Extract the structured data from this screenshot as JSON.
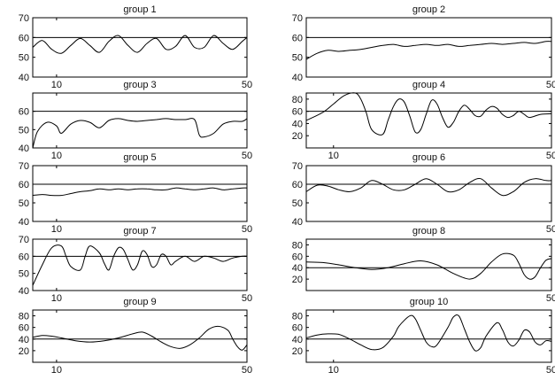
{
  "chart_data": [
    {
      "type": "line",
      "title": "group 1",
      "ylim": [
        40,
        70
      ],
      "yticks": [
        40,
        50,
        60,
        70
      ],
      "xlim": [
        5,
        50
      ],
      "xticks": [
        10,
        50
      ],
      "reference_line": 60,
      "x": [
        5,
        7,
        9,
        11,
        13,
        15,
        17,
        19,
        21,
        23,
        25,
        27,
        29,
        31,
        33,
        35,
        37,
        39,
        41,
        43,
        45,
        47,
        49,
        50
      ],
      "series": [
        {
          "values": [
            55,
            58.5,
            54,
            52,
            56,
            59.5,
            56,
            52.5,
            58,
            61,
            56,
            52.5,
            57,
            59.5,
            54,
            55.5,
            61,
            55,
            55,
            61,
            57,
            54,
            58,
            60
          ]
        }
      ]
    },
    {
      "type": "line",
      "title": "group 2",
      "ylim": [
        40,
        70
      ],
      "yticks": [
        40,
        50,
        60,
        70
      ],
      "xlim": [
        5,
        50
      ],
      "xticks": [
        50
      ],
      "reference_line": 60,
      "x": [
        5,
        7,
        9,
        11,
        13,
        15,
        17,
        19,
        21,
        23,
        25,
        27,
        29,
        31,
        33,
        35,
        37,
        39,
        41,
        43,
        45,
        47,
        49,
        50
      ],
      "series": [
        {
          "values": [
            49,
            52,
            53.5,
            53,
            53.5,
            54,
            55,
            56,
            56.5,
            55.5,
            56,
            56.5,
            56,
            56.5,
            55.5,
            56,
            56.5,
            57,
            56.5,
            57,
            57.5,
            57,
            58,
            58
          ]
        }
      ]
    },
    {
      "type": "line",
      "title": "group 3",
      "ylim": [
        40,
        70
      ],
      "yticks": [
        40,
        50,
        60
      ],
      "xlim": [
        5,
        50
      ],
      "xticks": [
        10,
        50
      ],
      "reference_line": 60,
      "x": [
        5,
        6,
        8,
        10,
        11,
        13,
        15,
        17,
        19,
        21,
        23,
        25,
        27,
        29,
        31,
        33,
        35,
        37,
        39,
        40,
        41,
        43,
        45,
        47,
        49,
        50
      ],
      "series": [
        {
          "values": [
            40,
            49,
            54,
            52,
            48,
            53,
            55,
            54,
            51,
            55,
            56,
            55,
            54.5,
            55,
            55.5,
            56,
            55.5,
            55.5,
            55.5,
            47,
            46,
            48,
            53,
            54.5,
            54.5,
            56
          ]
        }
      ]
    },
    {
      "type": "line",
      "title": "group 4",
      "ylim": [
        0,
        90
      ],
      "yticks": [
        20,
        40,
        60,
        80
      ],
      "xlim": [
        5,
        50
      ],
      "xticks": [
        10,
        50
      ],
      "reference_line": 60,
      "x": [
        5,
        8,
        10,
        12,
        14,
        15,
        16,
        17,
        19,
        20,
        21,
        22,
        23,
        24,
        25,
        26,
        27,
        28,
        29,
        30,
        31,
        32,
        33,
        34,
        35,
        36,
        37,
        38,
        39,
        40,
        41,
        42,
        43,
        44,
        45,
        46,
        48,
        50
      ],
      "series": [
        {
          "values": [
            45,
            58,
            72,
            86,
            90,
            80,
            58,
            30,
            22,
            45,
            68,
            80,
            75,
            52,
            26,
            30,
            55,
            78,
            72,
            50,
            34,
            42,
            60,
            70,
            63,
            53,
            52,
            62,
            68,
            65,
            55,
            50,
            53,
            60,
            55,
            50,
            55,
            56
          ]
        }
      ]
    },
    {
      "type": "line",
      "title": "group 5",
      "ylim": [
        40,
        70
      ],
      "yticks": [
        40,
        50,
        60,
        70
      ],
      "xlim": [
        5,
        50
      ],
      "xticks": [
        10,
        50
      ],
      "reference_line": 60,
      "x": [
        5,
        7,
        9,
        11,
        13,
        15,
        17,
        19,
        21,
        23,
        25,
        27,
        29,
        31,
        33,
        35,
        37,
        39,
        41,
        43,
        45,
        47,
        49,
        50
      ],
      "series": [
        {
          "values": [
            54,
            54.5,
            54,
            54,
            55,
            56,
            56.5,
            57.5,
            57,
            57.5,
            57,
            57.5,
            57.5,
            57,
            57,
            58,
            57.5,
            57,
            57.5,
            58,
            57,
            57.5,
            58,
            58
          ]
        }
      ]
    },
    {
      "type": "line",
      "title": "group 6",
      "ylim": [
        40,
        70
      ],
      "yticks": [
        40,
        50,
        60,
        70
      ],
      "xlim": [
        5,
        50
      ],
      "xticks": [
        50
      ],
      "reference_line": 60,
      "x": [
        5,
        7,
        9,
        11,
        13,
        15,
        17,
        19,
        21,
        23,
        25,
        27,
        29,
        31,
        33,
        35,
        37,
        39,
        41,
        43,
        45,
        47,
        49,
        50
      ],
      "series": [
        {
          "values": [
            56,
            59.5,
            59,
            57,
            56,
            58,
            62,
            60,
            57,
            57,
            60,
            63,
            60,
            56,
            57,
            61,
            63,
            58,
            54,
            56,
            61,
            63,
            62,
            62
          ]
        }
      ]
    },
    {
      "type": "line",
      "title": "group 7",
      "ylim": [
        40,
        70
      ],
      "yticks": [
        40,
        50,
        60,
        70
      ],
      "xlim": [
        5,
        50
      ],
      "xticks": [
        10,
        50
      ],
      "reference_line": 60,
      "x": [
        5,
        7,
        9,
        11,
        12,
        13,
        15,
        16,
        17,
        19,
        20,
        21,
        22,
        23,
        24,
        25,
        26,
        27,
        28,
        29,
        30,
        31,
        32,
        33,
        34,
        35,
        37,
        39,
        41,
        43,
        45,
        47,
        49,
        50
      ],
      "series": [
        {
          "values": [
            43,
            55,
            65,
            66,
            60,
            54,
            52,
            60,
            66,
            62,
            56,
            52,
            60,
            65,
            64,
            58,
            52,
            55,
            63,
            61,
            54,
            55,
            61,
            60,
            55,
            57,
            60,
            57,
            60,
            59,
            57,
            59,
            60,
            60
          ]
        }
      ]
    },
    {
      "type": "line",
      "title": "group 8",
      "ylim": [
        0,
        90
      ],
      "yticks": [
        20,
        40,
        60,
        80
      ],
      "xlim": [
        5,
        50
      ],
      "xticks": [
        50
      ],
      "reference_line": 40,
      "x": [
        5,
        8,
        11,
        14,
        17,
        20,
        23,
        26,
        29,
        32,
        35,
        37,
        39,
        41,
        43,
        44,
        45,
        46,
        47,
        48,
        49,
        50
      ],
      "series": [
        {
          "values": [
            50,
            49,
            45,
            40,
            37,
            40,
            47,
            52,
            45,
            30,
            20,
            30,
            50,
            64,
            62,
            48,
            28,
            20,
            24,
            40,
            53,
            56
          ]
        }
      ]
    },
    {
      "type": "line",
      "title": "group 9",
      "ylim": [
        0,
        90
      ],
      "yticks": [
        20,
        40,
        60,
        80
      ],
      "xlim": [
        5,
        50
      ],
      "xticks": [
        10,
        50
      ],
      "reference_line": 40,
      "x": [
        5,
        7,
        9,
        11,
        14,
        17,
        20,
        23,
        26,
        28,
        30,
        32,
        34,
        36,
        38,
        40,
        42,
        44,
        46,
        47,
        48,
        49,
        50
      ],
      "series": [
        {
          "values": [
            43,
            46,
            45,
            42,
            37,
            35,
            37,
            42,
            49,
            52,
            45,
            35,
            27,
            24,
            30,
            42,
            57,
            62,
            55,
            40,
            27,
            21,
            30
          ]
        }
      ]
    },
    {
      "type": "line",
      "title": "group 10",
      "ylim": [
        0,
        90
      ],
      "yticks": [
        20,
        40,
        60,
        80
      ],
      "xlim": [
        5,
        50
      ],
      "xticks": [
        10,
        50
      ],
      "reference_line": 40,
      "x": [
        5,
        7,
        9,
        11,
        13,
        15,
        17,
        19,
        21,
        22,
        24,
        25,
        26,
        27,
        28,
        29,
        31,
        32,
        33,
        34,
        35,
        36,
        37,
        38,
        40,
        41,
        42,
        43,
        44,
        45,
        46,
        47,
        48,
        49,
        50
      ],
      "series": [
        {
          "values": [
            42,
            47,
            49,
            48,
            40,
            30,
            22,
            25,
            45,
            62,
            80,
            75,
            55,
            35,
            27,
            30,
            60,
            78,
            80,
            58,
            35,
            20,
            25,
            45,
            68,
            56,
            35,
            28,
            38,
            55,
            52,
            35,
            30,
            37,
            36
          ]
        }
      ]
    }
  ]
}
